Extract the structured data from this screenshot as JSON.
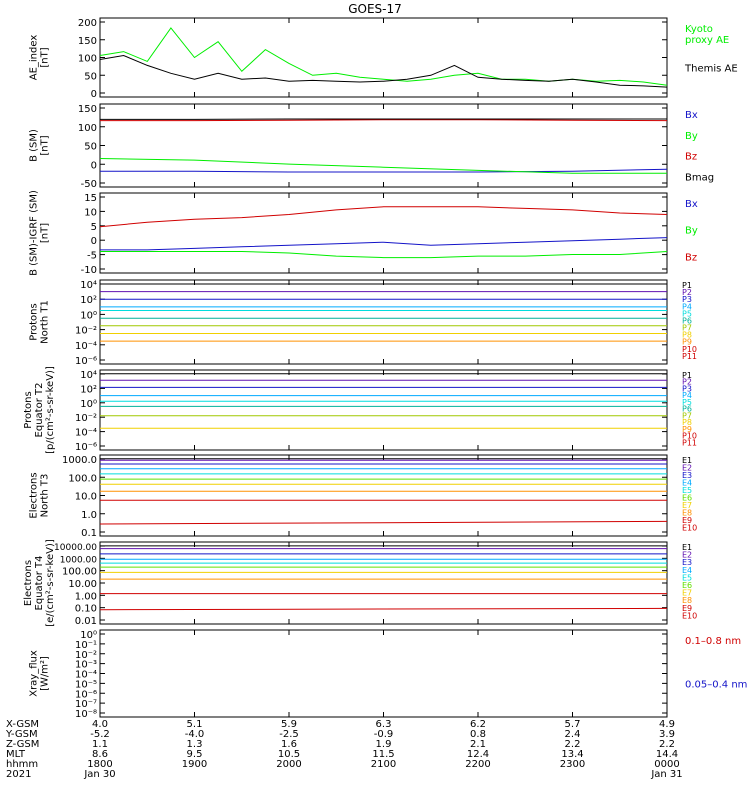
{
  "title": "GOES-17",
  "colors": {
    "black": "#000000",
    "green": "#00ee00",
    "blue": "#1414c8",
    "red": "#d00000",
    "yellowgreen": "#aadd00",
    "cyan": "#00dddd",
    "yellow": "#f0d000",
    "orange": "#ff9000",
    "teal": "#00b09a",
    "olive": "#a0c800",
    "lightgreen": "#60e000",
    "sky": "#00aaff",
    "purple": "#6010b0",
    "magenta": "#b00090"
  },
  "chart_data": [
    {
      "type": "line",
      "ylabel": "AE_index\n[nT]",
      "ytick_labels": [
        "200",
        "150",
        "100",
        "50",
        "0"
      ],
      "ylim": [
        0,
        200
      ],
      "x": [
        18.0,
        18.25,
        18.5,
        18.75,
        19.0,
        19.25,
        19.5,
        19.75,
        20.0,
        20.25,
        20.5,
        20.75,
        21.0,
        21.25,
        21.5,
        21.75,
        22.0,
        22.25,
        22.5,
        22.75,
        23.0,
        23.25,
        23.5,
        23.75,
        24.0
      ],
      "series": [
        {
          "name": "Kyoto\nproxy AE",
          "color_key": "green",
          "values": [
            105,
            115,
            90,
            175,
            100,
            140,
            65,
            120,
            85,
            55,
            60,
            50,
            45,
            40,
            45,
            55,
            60,
            45,
            45,
            40,
            45,
            40,
            42,
            38,
            30
          ]
        },
        {
          "name": "Themis AE",
          "color_key": "black",
          "values": [
            95,
            105,
            80,
            60,
            45,
            60,
            45,
            48,
            40,
            42,
            40,
            38,
            40,
            45,
            55,
            80,
            50,
            45,
            42,
            40,
            45,
            38,
            30,
            28,
            25
          ]
        }
      ]
    },
    {
      "type": "line",
      "ylabel": "B (SM)\n[nT]",
      "ytick_labels": [
        "150",
        "100",
        "50",
        "0",
        "-50"
      ],
      "ylim": [
        -60,
        150
      ],
      "x": [
        18.0,
        19.0,
        20.0,
        21.0,
        22.0,
        23.0,
        24.0
      ],
      "series": [
        {
          "name": "Bx",
          "color_key": "blue",
          "values": [
            -20,
            -20,
            -22,
            -22,
            -22,
            -20,
            -15
          ]
        },
        {
          "name": "By",
          "color_key": "green",
          "values": [
            12,
            8,
            -2,
            -10,
            -18,
            -25,
            -25
          ]
        },
        {
          "name": "Bz",
          "color_key": "red",
          "values": [
            108,
            108,
            109,
            110,
            110,
            109,
            108
          ]
        },
        {
          "name": "Bmag",
          "color_key": "black",
          "values": [
            111,
            111,
            112,
            112,
            112,
            112,
            112
          ]
        }
      ]
    },
    {
      "type": "line",
      "ylabel": "B (SM)-IGRF (SM)\n[nT]",
      "ytick_labels": [
        "15",
        "10",
        "5",
        "0",
        "-5",
        "-10"
      ],
      "ylim": [
        -10,
        16
      ],
      "x": [
        18.0,
        18.5,
        19.0,
        19.5,
        20.0,
        20.5,
        21.0,
        21.5,
        22.0,
        22.5,
        23.0,
        23.5,
        24.0
      ],
      "series": [
        {
          "name": "Bx",
          "color_key": "blue",
          "values": [
            -2.5,
            -2.5,
            -2.0,
            -1.5,
            -1,
            -0.5,
            0,
            -1,
            -0.5,
            0,
            0.5,
            1,
            1.5
          ]
        },
        {
          "name": "By",
          "color_key": "green",
          "values": [
            -3,
            -3,
            -3,
            -3,
            -3.5,
            -4.5,
            -5,
            -5,
            -4.5,
            -4.5,
            -4,
            -4,
            -3
          ]
        },
        {
          "name": "Bz",
          "color_key": "red",
          "values": [
            5,
            6.5,
            7.5,
            8,
            9,
            10.5,
            11.5,
            11.5,
            11.5,
            11,
            10.5,
            9.5,
            9
          ]
        }
      ]
    },
    {
      "type": "line",
      "ylabel": "Protons\nNorth T1",
      "log": true,
      "ytick_labels": [
        "10⁴",
        "10²",
        "10⁰",
        "10⁻²",
        "10⁻⁴",
        "10⁻⁶"
      ],
      "ylim_log10": [
        -7,
        4
      ],
      "x": [
        18.0,
        24.0
      ],
      "channels": [
        {
          "name": "P1",
          "color_key": "black",
          "values": [
            3000,
            3000
          ]
        },
        {
          "name": "P2",
          "color_key": "purple",
          "values": [
            300,
            300
          ]
        },
        {
          "name": "P3",
          "color_key": "blue",
          "values": [
            30,
            30
          ]
        },
        {
          "name": "P4",
          "color_key": "sky",
          "values": [
            3,
            3
          ]
        },
        {
          "name": "P5",
          "color_key": "cyan",
          "values": [
            1,
            1
          ]
        },
        {
          "name": "P6",
          "color_key": "teal",
          "values": [
            0.1,
            0.1
          ]
        },
        {
          "name": "P7",
          "color_key": "olive",
          "values": [
            0.01,
            0.01
          ]
        },
        {
          "name": "P8",
          "color_key": "yellow",
          "values": [
            0.001,
            0.001
          ]
        },
        {
          "name": "P9",
          "color_key": "orange",
          "values": [
            0.0001,
            0.0001
          ]
        },
        {
          "name": "P10",
          "color_key": "red",
          "values": [
            null,
            null
          ]
        },
        {
          "name": "P11",
          "color_key": "red",
          "values": [
            null,
            null
          ]
        }
      ]
    },
    {
      "type": "line",
      "ylabel": "Protons\nEquator T2\n[p/(cm²-s-sr-keV)]",
      "log": true,
      "ytick_labels": [
        "10⁴",
        "10²",
        "10⁰",
        "10⁻²",
        "10⁻⁴",
        "10⁻⁶"
      ],
      "ylim_log10": [
        -7,
        4
      ],
      "x": [
        18.0,
        24.0
      ],
      "channels": [
        {
          "name": "P1",
          "color_key": "black",
          "values": [
            3000,
            3000
          ]
        },
        {
          "name": "P2",
          "color_key": "purple",
          "values": [
            400,
            400
          ]
        },
        {
          "name": "P3",
          "color_key": "blue",
          "values": [
            40,
            40
          ]
        },
        {
          "name": "P4",
          "color_key": "sky",
          "values": [
            3,
            3
          ]
        },
        {
          "name": "P5",
          "color_key": "cyan",
          "values": [
            0.5,
            0.5
          ]
        },
        {
          "name": "P6",
          "color_key": "teal",
          "values": [
            0.1,
            0.1
          ]
        },
        {
          "name": "P7",
          "color_key": "olive",
          "values": [
            0.005,
            0.005
          ]
        },
        {
          "name": "P8",
          "color_key": "yellow",
          "values": [
            0.0001,
            0.0001
          ]
        },
        {
          "name": "P9",
          "color_key": "orange",
          "values": [
            null,
            null
          ]
        },
        {
          "name": "P10",
          "color_key": "red",
          "values": [
            null,
            null
          ]
        },
        {
          "name": "P11",
          "color_key": "red",
          "values": [
            null,
            null
          ]
        }
      ]
    },
    {
      "type": "line",
      "ylabel": "Electrons\nNorth T3",
      "log": true,
      "ytick_labels": [
        "1000.0",
        "100.0",
        "10.0",
        "1.0",
        "0.1"
      ],
      "ylim_log10": [
        -1,
        3.7
      ],
      "x": [
        18.0,
        24.0
      ],
      "channels": [
        {
          "name": "E1",
          "color_key": "black",
          "values": [
            3000,
            3000
          ]
        },
        {
          "name": "E2",
          "color_key": "purple",
          "values": [
            2500,
            2500
          ]
        },
        {
          "name": "E3",
          "color_key": "blue",
          "values": [
            1500,
            1500
          ]
        },
        {
          "name": "E4",
          "color_key": "sky",
          "values": [
            800,
            800
          ]
        },
        {
          "name": "E5",
          "color_key": "cyan",
          "values": [
            400,
            400
          ]
        },
        {
          "name": "E6",
          "color_key": "lightgreen",
          "values": [
            200,
            200
          ]
        },
        {
          "name": "E7",
          "color_key": "yellow",
          "values": [
            100,
            100
          ]
        },
        {
          "name": "E8",
          "color_key": "orange",
          "values": [
            40,
            40
          ]
        },
        {
          "name": "E9",
          "color_key": "red",
          "values": [
            12,
            12
          ]
        },
        {
          "name": "E10",
          "color_key": "red",
          "values": [
            0.5,
            0.7
          ]
        }
      ]
    },
    {
      "type": "line",
      "ylabel": "Electrons\nEquator T4\n[e/(cm²-s-sr-keV)]",
      "log": true,
      "ytick_labels": [
        "10000.00",
        "1000.00",
        "100.00",
        "10.00",
        "1.00",
        "0.10",
        "0.01"
      ],
      "ylim_log10": [
        -2,
        4.2
      ],
      "x": [
        18.0,
        24.0
      ],
      "channels": [
        {
          "name": "E1",
          "color_key": "black",
          "values": [
            8000,
            8000
          ]
        },
        {
          "name": "E2",
          "color_key": "purple",
          "values": [
            5000,
            5000
          ]
        },
        {
          "name": "E3",
          "color_key": "blue",
          "values": [
            2000,
            2000
          ]
        },
        {
          "name": "E4",
          "color_key": "sky",
          "values": [
            800,
            800
          ]
        },
        {
          "name": "E5",
          "color_key": "cyan",
          "values": [
            400,
            400
          ]
        },
        {
          "name": "E6",
          "color_key": "lightgreen",
          "values": [
            200,
            200
          ]
        },
        {
          "name": "E7",
          "color_key": "yellow",
          "values": [
            80,
            80
          ]
        },
        {
          "name": "E8",
          "color_key": "orange",
          "values": [
            25,
            25
          ]
        },
        {
          "name": "E9",
          "color_key": "red",
          "values": [
            2,
            2
          ]
        },
        {
          "name": "E10",
          "color_key": "red",
          "values": [
            0.12,
            0.15
          ]
        }
      ]
    },
    {
      "type": "line",
      "ylabel": "Xray_flux\n[W/m²]",
      "log": true,
      "ytick_labels": [
        "10⁰",
        "10⁻¹",
        "10⁻²",
        "10⁻³",
        "10⁻⁴",
        "10⁻⁵",
        "10⁻⁶",
        "10⁻⁷",
        "10⁻⁸"
      ],
      "ylim_log10": [
        -8,
        0
      ],
      "x": [],
      "series": [
        {
          "name": "0.1–0.8 nm",
          "color_key": "red",
          "values": []
        },
        {
          "name": "0.05–0.4 nm",
          "color_key": "blue",
          "values": []
        }
      ]
    }
  ],
  "xaxis": {
    "range": [
      18.0,
      24.0
    ],
    "rows": [
      {
        "label": "X-GSM",
        "values": [
          "4.0",
          "5.1",
          "5.9",
          "6.3",
          "6.2",
          "5.7",
          "4.9"
        ]
      },
      {
        "label": "Y-GSM",
        "values": [
          "-5.2",
          "-4.0",
          "-2.5",
          "-0.9",
          "0.8",
          "2.4",
          "3.9"
        ]
      },
      {
        "label": "Z-GSM",
        "values": [
          "1.1",
          "1.3",
          "1.6",
          "1.9",
          "2.1",
          "2.2",
          "2.2"
        ]
      },
      {
        "label": "MLT",
        "values": [
          "8.6",
          "9.5",
          "10.5",
          "11.5",
          "12.4",
          "13.4",
          "14.4"
        ]
      },
      {
        "label": "hhmm",
        "values": [
          "1800",
          "1900",
          "2000",
          "2100",
          "2200",
          "2300",
          "0000"
        ]
      },
      {
        "label": "2021",
        "values": [
          "Jan 30",
          "",
          "",
          "",
          "",
          "",
          "Jan 31"
        ]
      }
    ]
  }
}
